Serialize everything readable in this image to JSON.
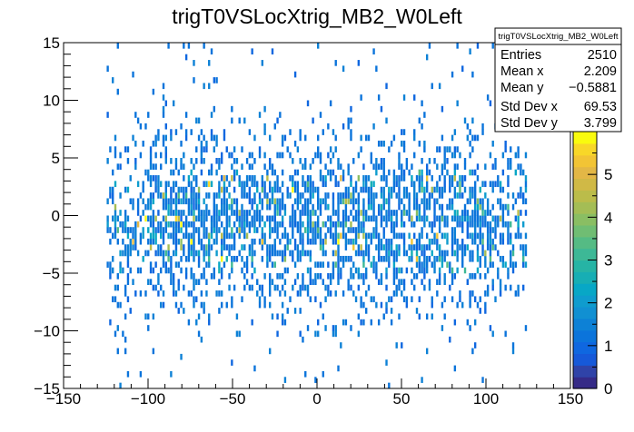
{
  "chart_data": {
    "type": "heatmap",
    "title": "trigT0VSLocXtrig_MB2_W0Left",
    "xlabel": "",
    "ylabel": "",
    "xlim": [
      -150,
      150
    ],
    "ylim": [
      -15,
      15
    ],
    "x_ticks": [
      -150,
      -100,
      -50,
      0,
      50,
      100,
      150
    ],
    "x_tick_labels": [
      "−150",
      "−100",
      "−50",
      "0",
      "50",
      "100",
      "150"
    ],
    "y_ticks": [
      -15,
      -10,
      -5,
      0,
      5,
      10,
      15
    ],
    "y_tick_labels": [
      "−15",
      "−10",
      "−5",
      "0",
      "5",
      "10",
      "15"
    ],
    "x_bin_width": 1.5,
    "y_bin_width": 0.5,
    "populated_x_range": [
      -124,
      124
    ],
    "z_range": [
      0,
      6
    ],
    "z_ticks": [
      0,
      1,
      2,
      3,
      4,
      5
    ],
    "palette": [
      "#352a87",
      "#2f43a8",
      "#1659d9",
      "#0f67e0",
      "#0b74db",
      "#0d81d6",
      "#1190d2",
      "#0f9cce",
      "#08a7c6",
      "#17aeb4",
      "#26b4a5",
      "#3db896",
      "#55bb84",
      "#70bd73",
      "#8abe63",
      "#a4bd55",
      "#bbbc4a",
      "#d0b946",
      "#e3b746",
      "#f2c435",
      "#f8d728",
      "#f9fb0e"
    ],
    "stats": {
      "name": "trigT0VSLocXtrig_MB2_W0Left",
      "rows": [
        {
          "label": "Entries",
          "value": "2510"
        },
        {
          "label": "Mean x",
          "value": "2.209"
        },
        {
          "label": "Mean y",
          "value": "−0.5881"
        },
        {
          "label": "Std Dev x",
          "value": "69.53"
        },
        {
          "label": "Std Dev y",
          "value": "3.799"
        }
      ]
    }
  }
}
